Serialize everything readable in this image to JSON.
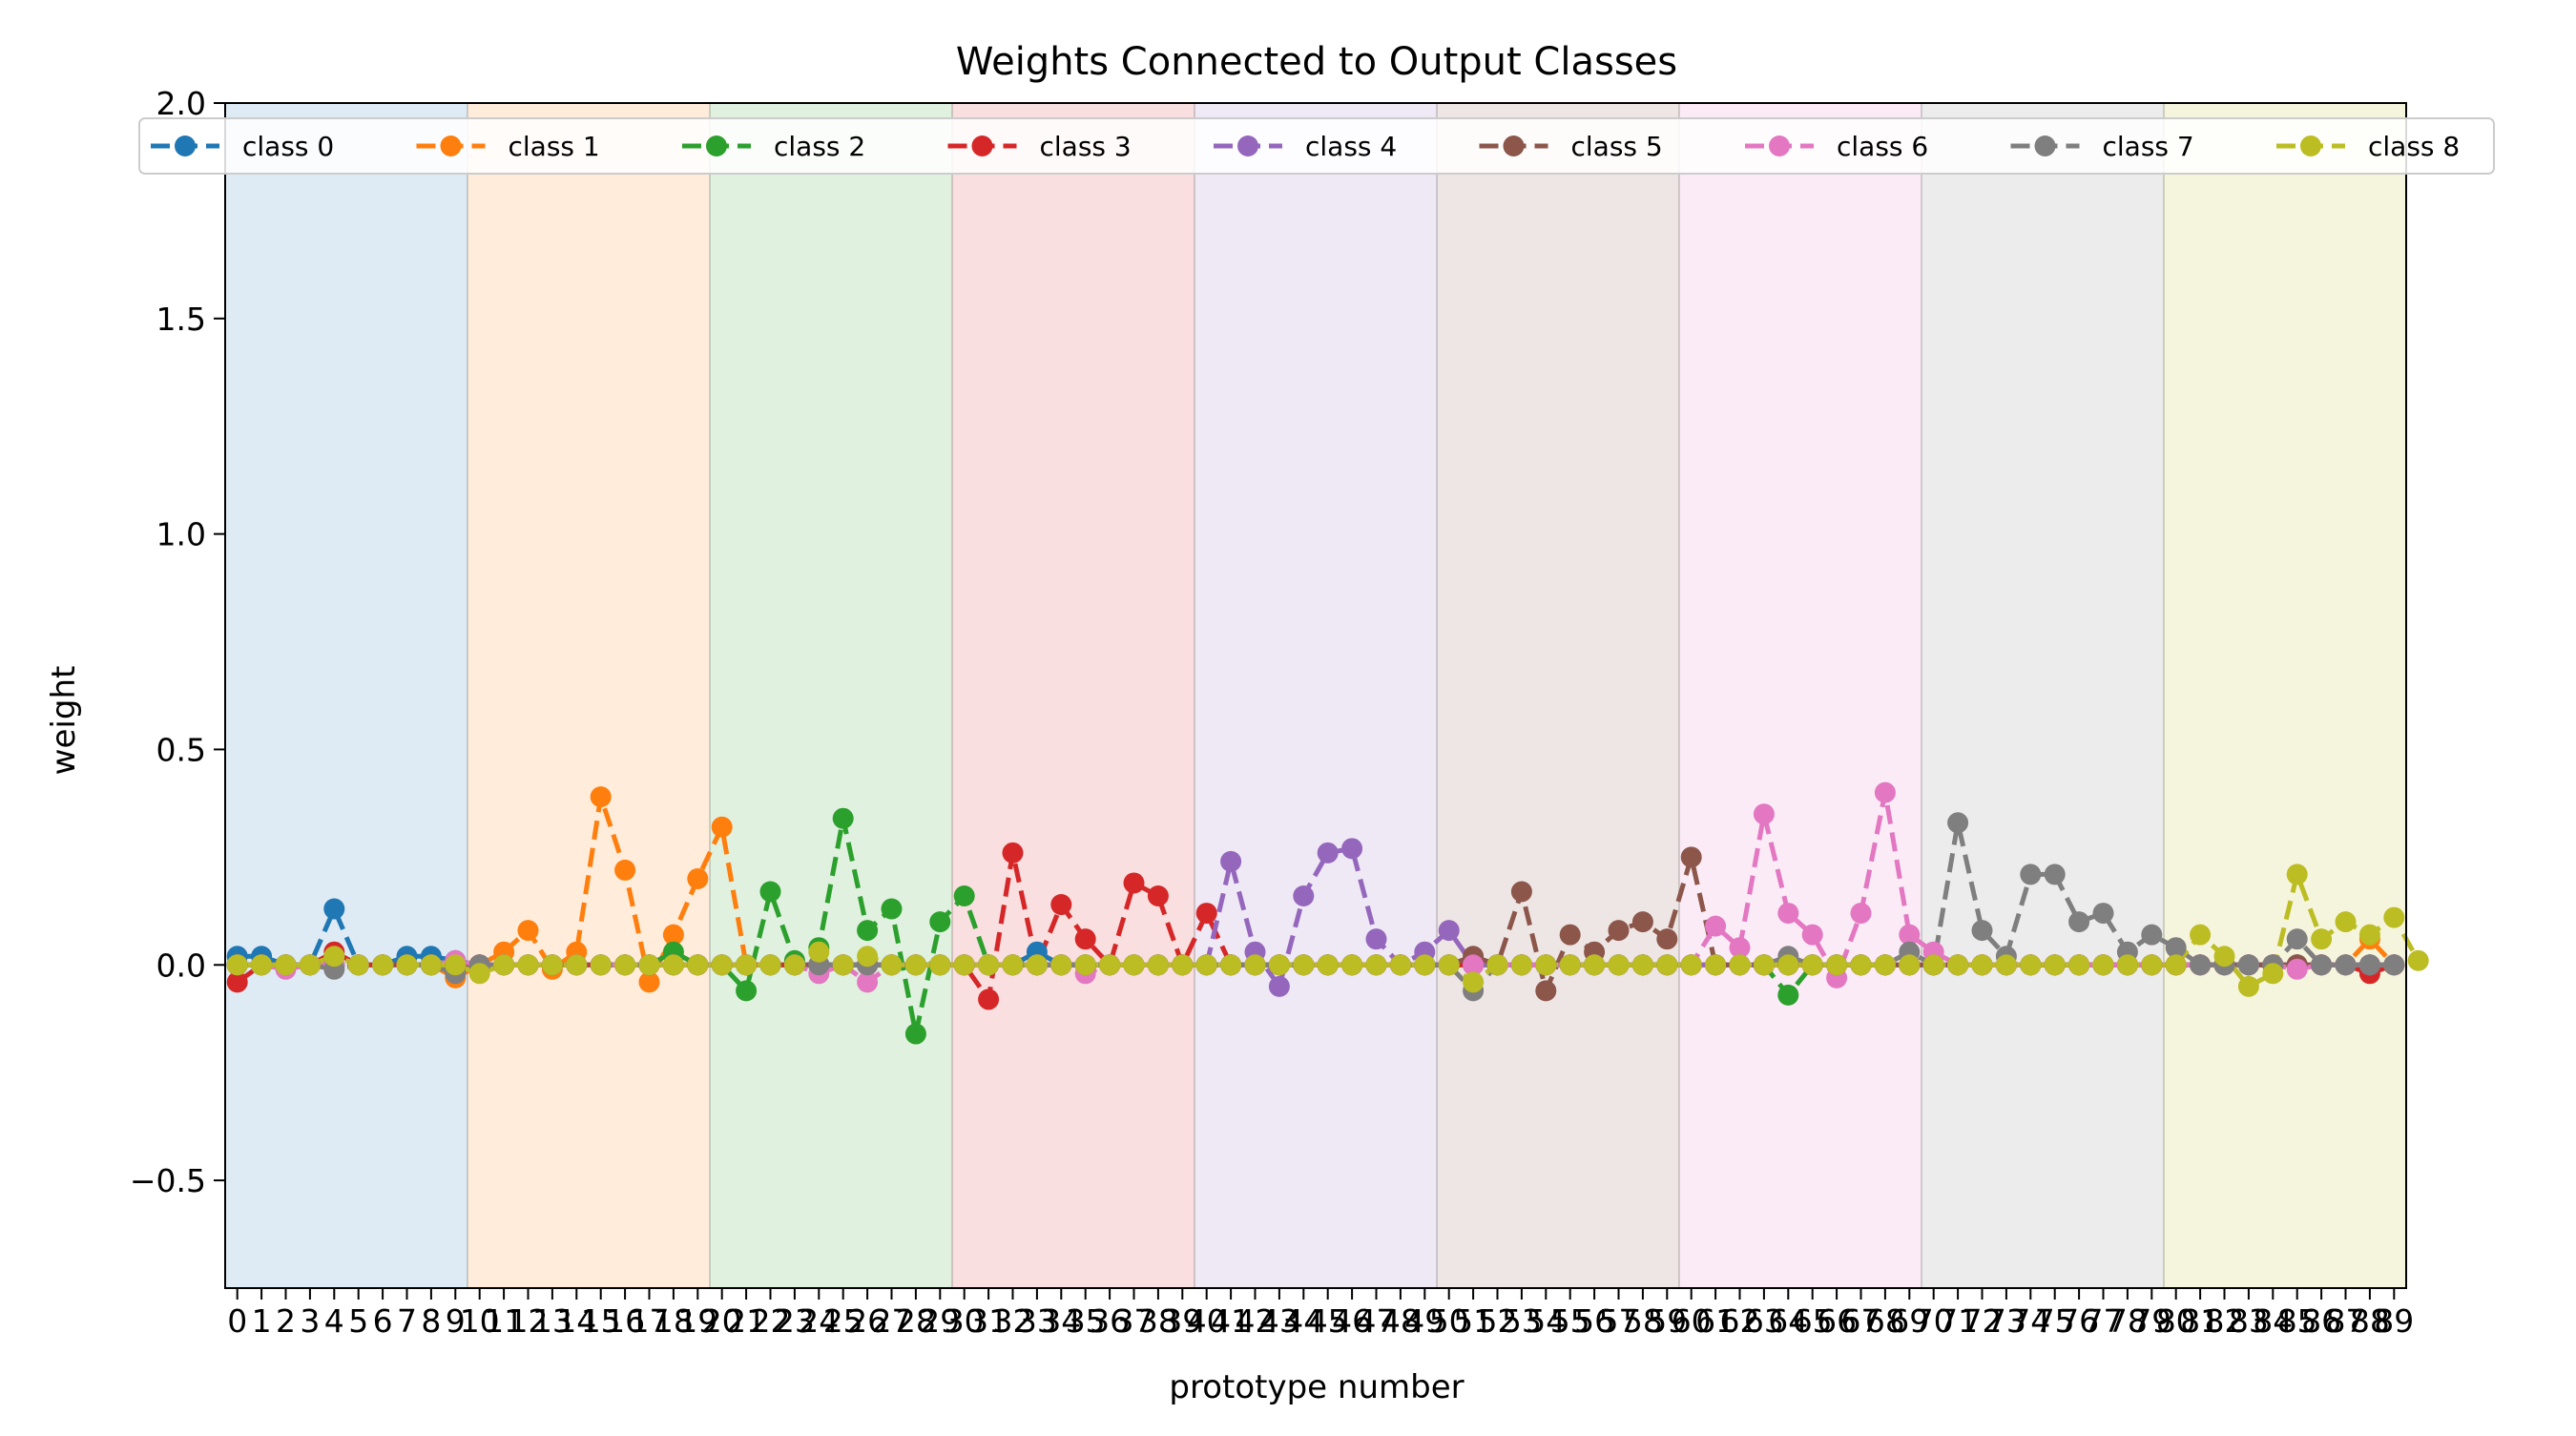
{
  "chart_data": {
    "type": "line",
    "title": "Weights Connected to Output Classes",
    "xlabel": "prototype number",
    "ylabel": "weight",
    "xlim": [
      -0.5,
      89.5
    ],
    "ylim": [
      -0.75,
      2.0
    ],
    "y_ticks": [
      "2.0",
      "1.5",
      "1.0",
      "0.5",
      "0.0",
      "−0.5"
    ],
    "y_tick_values": [
      2.0,
      1.5,
      1.0,
      0.5,
      0.0,
      -0.5
    ],
    "x_ticks": [
      "0",
      "1",
      "2",
      "3",
      "4",
      "5",
      "6",
      "7",
      "8",
      "9",
      "10",
      "11",
      "12",
      "13",
      "14",
      "15",
      "16",
      "17",
      "18",
      "19",
      "20",
      "21",
      "22",
      "23",
      "24",
      "25",
      "26",
      "27",
      "28",
      "29",
      "30",
      "31",
      "32",
      "33",
      "34",
      "35",
      "36",
      "37",
      "38",
      "39",
      "40",
      "41",
      "42",
      "43",
      "44",
      "45",
      "46",
      "47",
      "48",
      "49",
      "50",
      "51",
      "52",
      "53",
      "54",
      "55",
      "56",
      "57",
      "58",
      "59",
      "60",
      "61",
      "62",
      "63",
      "64",
      "65",
      "66",
      "67",
      "68",
      "69",
      "70",
      "71",
      "72",
      "73",
      "74",
      "75",
      "76",
      "77",
      "78",
      "79",
      "80",
      "81",
      "82",
      "83",
      "84",
      "85",
      "86",
      "87",
      "88",
      "89"
    ],
    "grid": false,
    "legend_placement": "top",
    "class_regions": [
      {
        "start": -0.5,
        "end": 9.5,
        "color": "#1f77b4"
      },
      {
        "start": 9.5,
        "end": 19.5,
        "color": "#ff7f0e"
      },
      {
        "start": 19.5,
        "end": 29.5,
        "color": "#2ca02c"
      },
      {
        "start": 29.5,
        "end": 39.5,
        "color": "#d62728"
      },
      {
        "start": 39.5,
        "end": 49.5,
        "color": "#9467bd"
      },
      {
        "start": 49.5,
        "end": 59.5,
        "color": "#8c564b"
      },
      {
        "start": 59.5,
        "end": 69.5,
        "color": "#e377c2"
      },
      {
        "start": 69.5,
        "end": 79.5,
        "color": "#7f7f7f"
      },
      {
        "start": 79.5,
        "end": 89.5,
        "color": "#bcbd22"
      }
    ],
    "series": [
      {
        "name": "class 0",
        "color": "#1f77b4",
        "values": [
          0.02,
          0.02,
          0.0,
          0.0,
          0.13,
          0.0,
          0.0,
          0.02,
          0.02,
          0.01,
          0.0,
          0.0,
          0.0,
          0.0,
          0.0,
          0.0,
          0.0,
          0.0,
          0.0,
          0.0,
          0.0,
          0.0,
          0.0,
          0.0,
          0.0,
          0.0,
          0.0,
          0.0,
          0.0,
          0.0,
          0.0,
          0.0,
          0.0,
          0.03,
          0.0,
          0.0,
          0.0,
          0.0,
          0.0,
          0.0,
          0.0,
          0.0,
          0.0,
          0.0,
          0.0,
          0.0,
          0.0,
          0.0,
          0.0,
          0.0,
          0.0,
          0.0,
          0.0,
          0.0,
          0.0,
          0.0,
          0.0,
          0.0,
          0.0,
          0.0,
          0.0,
          0.0,
          0.0,
          0.0,
          0.0,
          0.0,
          0.0,
          0.0,
          0.0,
          0.0,
          0.0,
          0.0,
          0.0,
          0.0,
          0.0,
          0.0,
          0.0,
          0.0,
          0.0,
          0.0,
          0.0,
          0.0,
          0.0,
          0.0,
          0.0,
          0.0,
          0.0,
          0.0,
          0.0,
          0.0
        ]
      },
      {
        "name": "class 1",
        "color": "#ff7f0e",
        "values": [
          0.0,
          0.0,
          0.0,
          0.0,
          0.0,
          0.0,
          0.0,
          0.0,
          0.0,
          -0.03,
          0.0,
          0.03,
          0.08,
          -0.01,
          0.03,
          0.39,
          0.22,
          -0.04,
          0.07,
          0.2,
          0.32,
          0.0,
          0.0,
          0.0,
          0.0,
          0.0,
          0.0,
          0.0,
          0.0,
          0.0,
          0.0,
          0.0,
          0.0,
          0.0,
          0.0,
          0.0,
          0.0,
          0.0,
          0.0,
          0.0,
          0.0,
          0.0,
          0.0,
          0.0,
          0.0,
          0.0,
          0.0,
          0.0,
          0.0,
          0.0,
          0.0,
          0.0,
          0.0,
          0.0,
          0.0,
          0.0,
          0.0,
          0.0,
          0.0,
          0.0,
          0.0,
          0.0,
          0.0,
          0.0,
          0.0,
          0.0,
          0.0,
          0.0,
          0.0,
          0.0,
          0.0,
          0.0,
          0.0,
          0.0,
          0.0,
          0.0,
          0.0,
          0.0,
          0.0,
          0.0,
          0.0,
          0.0,
          0.0,
          0.0,
          0.0,
          0.0,
          0.0,
          0.0,
          0.06,
          0.0
        ]
      },
      {
        "name": "class 2",
        "color": "#2ca02c",
        "values": [
          0.0,
          0.0,
          0.0,
          0.0,
          0.0,
          0.0,
          0.0,
          0.0,
          0.0,
          0.0,
          0.0,
          0.0,
          0.0,
          0.0,
          0.0,
          0.0,
          0.0,
          0.0,
          0.03,
          0.0,
          0.0,
          -0.06,
          0.17,
          0.01,
          0.04,
          0.34,
          0.08,
          0.13,
          -0.16,
          0.1,
          0.16,
          0.0,
          0.0,
          0.0,
          0.0,
          0.0,
          0.0,
          0.0,
          0.0,
          0.0,
          0.0,
          0.0,
          0.0,
          0.0,
          0.0,
          0.0,
          0.0,
          0.0,
          0.0,
          0.0,
          0.0,
          0.0,
          0.0,
          0.0,
          0.0,
          0.0,
          0.0,
          0.0,
          0.0,
          0.0,
          0.0,
          0.0,
          0.0,
          0.0,
          -0.07,
          0.0,
          0.0,
          0.0,
          0.0,
          0.0,
          0.0,
          0.0,
          0.0,
          0.0,
          0.0,
          0.0,
          0.0,
          0.0,
          0.0,
          0.0,
          0.0,
          0.0,
          0.0,
          0.0,
          0.0,
          0.0,
          0.0,
          0.0,
          0.0,
          0.0
        ]
      },
      {
        "name": "class 3",
        "color": "#d62728",
        "values": [
          -0.04,
          0.0,
          0.0,
          0.0,
          0.03,
          0.0,
          0.0,
          0.0,
          0.0,
          0.0,
          0.0,
          0.0,
          0.0,
          0.0,
          0.0,
          0.0,
          0.0,
          0.0,
          0.0,
          0.0,
          0.0,
          0.0,
          0.0,
          0.0,
          0.0,
          0.0,
          0.0,
          0.0,
          0.0,
          0.0,
          0.0,
          -0.08,
          0.26,
          0.0,
          0.14,
          0.06,
          0.0,
          0.19,
          0.16,
          0.0,
          0.12,
          0.0,
          0.0,
          0.0,
          0.0,
          0.0,
          0.0,
          0.0,
          0.0,
          0.0,
          0.0,
          0.0,
          0.0,
          0.0,
          0.0,
          0.0,
          0.0,
          0.0,
          0.0,
          0.0,
          0.0,
          0.0,
          0.0,
          0.0,
          0.0,
          0.0,
          0.0,
          0.0,
          0.0,
          0.0,
          0.0,
          0.0,
          0.0,
          0.0,
          0.0,
          0.0,
          0.0,
          0.0,
          0.0,
          0.0,
          0.0,
          0.0,
          0.0,
          0.0,
          0.0,
          0.0,
          0.0,
          0.0,
          -0.02,
          0.0
        ]
      },
      {
        "name": "class 4",
        "color": "#9467bd",
        "values": [
          0.0,
          0.0,
          0.0,
          0.0,
          0.0,
          0.0,
          0.0,
          0.0,
          0.0,
          0.0,
          0.0,
          0.0,
          0.0,
          0.0,
          0.0,
          0.0,
          0.0,
          0.0,
          0.0,
          0.0,
          0.0,
          0.0,
          0.0,
          0.0,
          0.0,
          0.0,
          0.0,
          0.0,
          0.0,
          0.0,
          0.0,
          0.0,
          0.0,
          0.0,
          0.0,
          0.0,
          0.0,
          0.0,
          0.0,
          0.0,
          0.0,
          0.24,
          0.03,
          -0.05,
          0.16,
          0.26,
          0.27,
          0.06,
          0.0,
          0.03,
          0.08,
          0.0,
          0.0,
          0.0,
          0.0,
          0.0,
          0.0,
          0.0,
          0.0,
          0.0,
          0.0,
          0.0,
          0.0,
          0.0,
          0.0,
          0.0,
          0.0,
          0.0,
          0.0,
          0.0,
          0.0,
          0.0,
          0.0,
          0.0,
          0.0,
          0.0,
          0.0,
          0.0,
          0.0,
          0.0,
          0.0,
          0.0,
          0.0,
          0.0,
          0.0,
          0.0,
          0.0,
          0.0,
          0.0,
          0.0
        ]
      },
      {
        "name": "class 5",
        "color": "#8c564b",
        "values": [
          0.0,
          0.0,
          0.0,
          0.0,
          0.0,
          0.0,
          0.0,
          0.0,
          0.0,
          0.0,
          0.0,
          0.0,
          0.0,
          0.0,
          0.0,
          0.0,
          0.0,
          0.0,
          0.0,
          0.0,
          0.0,
          0.0,
          0.0,
          0.0,
          0.0,
          0.0,
          0.0,
          0.0,
          0.0,
          0.0,
          0.0,
          0.0,
          0.0,
          0.0,
          0.0,
          0.0,
          0.0,
          0.0,
          0.0,
          0.0,
          0.0,
          0.0,
          0.0,
          0.0,
          0.0,
          0.0,
          0.0,
          0.0,
          0.0,
          0.0,
          0.0,
          0.02,
          0.0,
          0.17,
          -0.06,
          0.07,
          0.03,
          0.08,
          0.1,
          0.06,
          0.25,
          0.0,
          0.0,
          0.0,
          0.0,
          0.0,
          0.0,
          0.0,
          0.0,
          0.0,
          0.0,
          0.0,
          0.0,
          0.0,
          0.0,
          0.0,
          0.0,
          0.0,
          0.0,
          0.0,
          0.0,
          0.0,
          0.0,
          0.0,
          0.0,
          0.0,
          0.0,
          0.0,
          0.0,
          0.0
        ]
      },
      {
        "name": "class 6",
        "color": "#e377c2",
        "values": [
          0.0,
          0.0,
          -0.01,
          0.0,
          0.0,
          0.0,
          0.0,
          0.0,
          0.0,
          0.01,
          0.0,
          0.0,
          0.0,
          0.0,
          0.0,
          0.0,
          0.0,
          0.0,
          0.0,
          0.0,
          0.0,
          0.0,
          0.0,
          0.0,
          -0.02,
          0.0,
          -0.04,
          0.0,
          0.0,
          0.0,
          0.0,
          0.0,
          0.0,
          0.0,
          0.0,
          -0.02,
          0.0,
          0.0,
          0.0,
          0.0,
          0.0,
          0.0,
          0.0,
          0.0,
          0.0,
          0.0,
          0.0,
          0.0,
          0.0,
          0.0,
          0.0,
          0.0,
          0.0,
          0.0,
          0.0,
          0.0,
          0.0,
          0.0,
          0.0,
          0.0,
          0.0,
          0.09,
          0.04,
          0.35,
          0.12,
          0.07,
          -0.03,
          0.12,
          0.4,
          0.07,
          0.03,
          0.0,
          0.0,
          0.0,
          0.0,
          0.0,
          0.0,
          0.0,
          0.0,
          0.0,
          0.0,
          0.0,
          0.0,
          0.0,
          0.0,
          -0.01,
          0.0,
          0.0,
          0.0,
          0.0
        ]
      },
      {
        "name": "class 7",
        "color": "#7f7f7f",
        "values": [
          0.0,
          0.0,
          0.0,
          0.0,
          -0.01,
          0.0,
          0.0,
          0.0,
          0.0,
          -0.02,
          0.0,
          0.0,
          0.0,
          0.0,
          0.0,
          0.0,
          0.0,
          0.0,
          0.0,
          0.0,
          0.0,
          0.0,
          0.0,
          0.0,
          0.0,
          0.0,
          0.0,
          0.0,
          0.0,
          0.0,
          0.0,
          0.0,
          0.0,
          0.0,
          0.0,
          0.0,
          0.0,
          0.0,
          0.0,
          0.0,
          0.0,
          0.0,
          0.0,
          0.0,
          0.0,
          0.0,
          0.0,
          0.0,
          0.0,
          0.0,
          0.0,
          -0.06,
          0.0,
          0.0,
          0.0,
          0.0,
          0.0,
          0.0,
          0.0,
          0.0,
          0.0,
          0.0,
          0.0,
          0.0,
          0.02,
          0.0,
          0.0,
          0.0,
          0.0,
          0.03,
          0.0,
          0.33,
          0.08,
          0.02,
          0.21,
          0.21,
          0.1,
          0.12,
          0.03,
          0.07,
          0.04,
          0.0,
          0.0,
          0.0,
          0.0,
          0.06,
          0.0,
          0.0,
          0.0,
          0.0
        ]
      },
      {
        "name": "class 8",
        "color": "#bcbd22",
        "values": [
          0.0,
          0.0,
          0.0,
          0.0,
          0.02,
          0.0,
          0.0,
          0.0,
          0.0,
          0.0,
          -0.02,
          0.0,
          0.0,
          0.0,
          0.0,
          0.0,
          0.0,
          0.0,
          0.0,
          0.0,
          0.0,
          0.0,
          0.0,
          0.0,
          0.03,
          0.0,
          0.02,
          0.0,
          0.0,
          0.0,
          0.0,
          0.0,
          0.0,
          0.0,
          0.0,
          0.0,
          0.0,
          0.0,
          0.0,
          0.0,
          0.0,
          0.0,
          0.0,
          0.0,
          0.0,
          0.0,
          0.0,
          0.0,
          0.0,
          0.0,
          0.0,
          -0.04,
          0.0,
          0.0,
          0.0,
          0.0,
          0.0,
          0.0,
          0.0,
          0.0,
          0.0,
          0.0,
          0.0,
          0.0,
          0.0,
          0.0,
          0.0,
          0.0,
          0.0,
          0.0,
          0.0,
          0.0,
          0.0,
          0.0,
          0.0,
          0.0,
          0.0,
          0.0,
          0.0,
          0.0,
          0.0,
          0.07,
          0.02,
          -0.05,
          -0.02,
          0.21,
          0.06,
          0.1,
          0.07,
          0.11,
          0.01
        ]
      }
    ]
  }
}
